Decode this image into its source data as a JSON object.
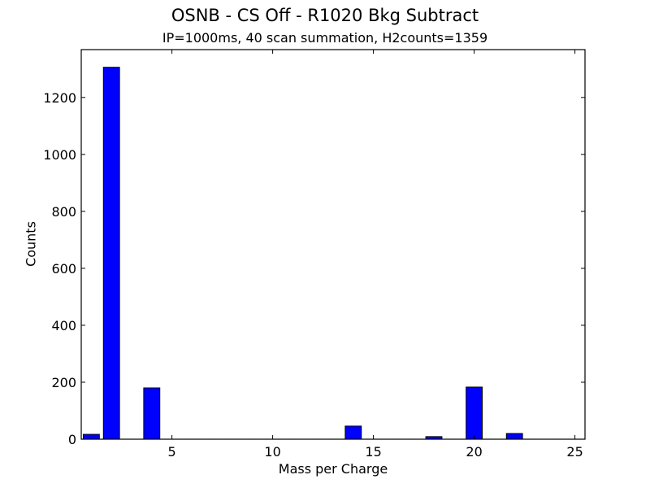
{
  "chart_data": {
    "type": "bar",
    "title": "OSNB - CS Off - R1020 Bkg Subtract",
    "subtitle": "IP=1000ms, 40 scan summation, H2counts=1359",
    "xlabel": "Mass per Charge",
    "ylabel": "Counts",
    "x": [
      1,
      2,
      3,
      4,
      5,
      6,
      7,
      8,
      9,
      10,
      11,
      12,
      13,
      14,
      15,
      16,
      17,
      18,
      19,
      20,
      21,
      22,
      23,
      24,
      25
    ],
    "values": [
      17,
      1306,
      0,
      180,
      0,
      0,
      0,
      0,
      0,
      0,
      0,
      0,
      0,
      46,
      0,
      0,
      0,
      9,
      0,
      183,
      0,
      20,
      0,
      0,
      0
    ],
    "bar_width": 0.8,
    "bar_color": "#0000ff",
    "bar_edge_color": "#000000",
    "xlim": [
      0.5,
      25.5
    ],
    "ylim": [
      0,
      1368
    ],
    "xticks": [
      5,
      10,
      15,
      20,
      25
    ],
    "yticks": [
      0,
      200,
      400,
      600,
      800,
      1000,
      1200
    ],
    "grid": false,
    "legend": null
  }
}
